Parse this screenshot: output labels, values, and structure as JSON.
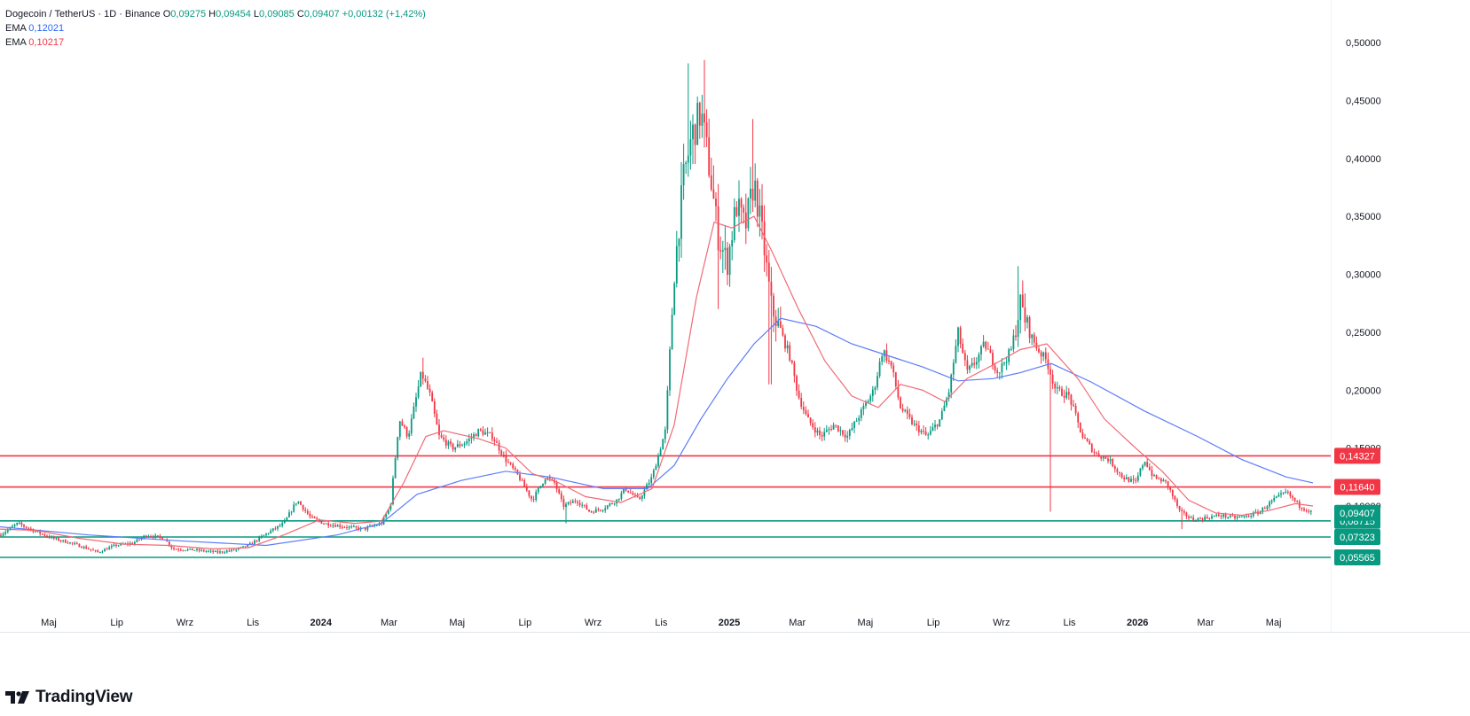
{
  "legend": {
    "symbol": "Dogecoin / TetherUS · 1D · Binance",
    "open_label": "O",
    "open": "0,09275",
    "high_label": "H",
    "high": "0,09454",
    "low_label": "L",
    "low": "0,09085",
    "close_label": "C",
    "close": "0,09407",
    "change": "+0,00132 (+1,42%)",
    "ema1_label": "EMA",
    "ema1_value": "0,12021",
    "ema2_label": "EMA",
    "ema2_value": "0,10217"
  },
  "brand": {
    "name": "TradingView"
  },
  "colors": {
    "up": "#089981",
    "down": "#f23645",
    "ema_slow": "#5b7cfa",
    "ema_fast": "#f06a75",
    "resistance": "#f23645",
    "support": "#089981"
  },
  "chart_data": {
    "type": "candlestick",
    "title": "Dogecoin / TetherUS · 1D · Binance",
    "ylim": [
      0.045,
      0.52
    ],
    "y_ticks": [
      0.1,
      0.15,
      0.2,
      0.25,
      0.3,
      0.35,
      0.4,
      0.45,
      0.5
    ],
    "y_tick_labels": [
      "0,10000",
      "0,15000",
      "0,20000",
      "0,25000",
      "0,30000",
      "0,35000",
      "0,40000",
      "0,45000",
      "0,50000"
    ],
    "x_tick_labels": [
      "Maj",
      "Lip",
      "Wrz",
      "Lis",
      "2024",
      "Mar",
      "Maj",
      "Lip",
      "Wrz",
      "Lis",
      "2025",
      "Mar",
      "Maj",
      "Lip",
      "Wrz",
      "Lis",
      "2026",
      "Mar",
      "Maj"
    ],
    "x_tick_bold": [
      false,
      false,
      false,
      false,
      true,
      false,
      false,
      false,
      false,
      false,
      true,
      false,
      false,
      false,
      false,
      false,
      true,
      false,
      false
    ],
    "horizontal_levels": [
      {
        "value": 0.14327,
        "label": "0,14327",
        "kind": "resistance"
      },
      {
        "value": 0.1164,
        "label": "0,11640",
        "kind": "resistance"
      },
      {
        "value": 0.08715,
        "label": "0,08715",
        "kind": "support"
      },
      {
        "value": 0.07323,
        "label": "0,07323",
        "kind": "support"
      },
      {
        "value": 0.05565,
        "label": "0,05565",
        "kind": "support"
      }
    ],
    "last_price": {
      "value": 0.09407,
      "label": "0,09407"
    },
    "price_path": [
      [
        0,
        0.075
      ],
      [
        20,
        0.085
      ],
      [
        40,
        0.078
      ],
      [
        60,
        0.072
      ],
      [
        80,
        0.068
      ],
      [
        100,
        0.063
      ],
      [
        110,
        0.06
      ],
      [
        130,
        0.066
      ],
      [
        150,
        0.068
      ],
      [
        165,
        0.075
      ],
      [
        185,
        0.072
      ],
      [
        195,
        0.063
      ],
      [
        220,
        0.062
      ],
      [
        245,
        0.06
      ],
      [
        265,
        0.062
      ],
      [
        280,
        0.066
      ],
      [
        300,
        0.076
      ],
      [
        320,
        0.085
      ],
      [
        335,
        0.105
      ],
      [
        350,
        0.09
      ],
      [
        365,
        0.085
      ],
      [
        390,
        0.082
      ],
      [
        410,
        0.08
      ],
      [
        430,
        0.085
      ],
      [
        440,
        0.1
      ],
      [
        450,
        0.175
      ],
      [
        460,
        0.16
      ],
      [
        475,
        0.215
      ],
      [
        485,
        0.195
      ],
      [
        495,
        0.16
      ],
      [
        510,
        0.15
      ],
      [
        525,
        0.155
      ],
      [
        540,
        0.165
      ],
      [
        555,
        0.16
      ],
      [
        570,
        0.14
      ],
      [
        585,
        0.125
      ],
      [
        600,
        0.105
      ],
      [
        615,
        0.125
      ],
      [
        625,
        0.12
      ],
      [
        635,
        0.1
      ],
      [
        650,
        0.105
      ],
      [
        665,
        0.095
      ],
      [
        680,
        0.098
      ],
      [
        695,
        0.105
      ],
      [
        705,
        0.115
      ],
      [
        720,
        0.105
      ],
      [
        735,
        0.125
      ],
      [
        750,
        0.165
      ],
      [
        760,
        0.3
      ],
      [
        770,
        0.38
      ],
      [
        780,
        0.42
      ],
      [
        790,
        0.44
      ],
      [
        800,
        0.39
      ],
      [
        810,
        0.33
      ],
      [
        820,
        0.31
      ],
      [
        830,
        0.36
      ],
      [
        840,
        0.34
      ],
      [
        850,
        0.38
      ],
      [
        860,
        0.33
      ],
      [
        870,
        0.27
      ],
      [
        880,
        0.25
      ],
      [
        890,
        0.23
      ],
      [
        900,
        0.195
      ],
      [
        910,
        0.175
      ],
      [
        925,
        0.16
      ],
      [
        940,
        0.17
      ],
      [
        955,
        0.16
      ],
      [
        970,
        0.18
      ],
      [
        985,
        0.2
      ],
      [
        995,
        0.235
      ],
      [
        1005,
        0.22
      ],
      [
        1015,
        0.185
      ],
      [
        1030,
        0.17
      ],
      [
        1045,
        0.16
      ],
      [
        1060,
        0.175
      ],
      [
        1070,
        0.2
      ],
      [
        1080,
        0.25
      ],
      [
        1090,
        0.215
      ],
      [
        1100,
        0.225
      ],
      [
        1110,
        0.24
      ],
      [
        1125,
        0.215
      ],
      [
        1140,
        0.235
      ],
      [
        1150,
        0.275
      ],
      [
        1160,
        0.25
      ],
      [
        1170,
        0.235
      ],
      [
        1180,
        0.225
      ],
      [
        1190,
        0.2
      ],
      [
        1205,
        0.195
      ],
      [
        1220,
        0.16
      ],
      [
        1235,
        0.145
      ],
      [
        1250,
        0.14
      ],
      [
        1265,
        0.125
      ],
      [
        1280,
        0.12
      ],
      [
        1290,
        0.14
      ],
      [
        1300,
        0.125
      ],
      [
        1315,
        0.12
      ],
      [
        1330,
        0.095
      ],
      [
        1345,
        0.088
      ],
      [
        1360,
        0.09
      ],
      [
        1375,
        0.092
      ],
      [
        1390,
        0.09
      ],
      [
        1405,
        0.091
      ],
      [
        1420,
        0.095
      ],
      [
        1435,
        0.105
      ],
      [
        1450,
        0.112
      ],
      [
        1465,
        0.1
      ],
      [
        1480,
        0.094
      ]
    ],
    "spikes": [
      {
        "x": 775,
        "high": 0.482
      },
      {
        "x": 795,
        "high": 0.485
      },
      {
        "x": 848,
        "high": 0.434
      },
      {
        "x": 1148,
        "high": 0.307
      },
      {
        "x": 476,
        "high": 0.228
      }
    ],
    "dips": [
      {
        "x": 1183,
        "low": 0.095
      },
      {
        "x": 810,
        "low": 0.27
      },
      {
        "x": 868,
        "low": 0.205
      },
      {
        "x": 638,
        "low": 0.085
      },
      {
        "x": 1333,
        "low": 0.08
      }
    ],
    "ema_slow_path": [
      [
        0,
        0.082
      ],
      [
        100,
        0.075
      ],
      [
        200,
        0.07
      ],
      [
        300,
        0.066
      ],
      [
        380,
        0.075
      ],
      [
        430,
        0.085
      ],
      [
        470,
        0.11
      ],
      [
        520,
        0.122
      ],
      [
        570,
        0.13
      ],
      [
        620,
        0.125
      ],
      [
        680,
        0.115
      ],
      [
        730,
        0.115
      ],
      [
        760,
        0.135
      ],
      [
        790,
        0.175
      ],
      [
        820,
        0.21
      ],
      [
        850,
        0.24
      ],
      [
        880,
        0.262
      ],
      [
        920,
        0.255
      ],
      [
        960,
        0.24
      ],
      [
        1000,
        0.23
      ],
      [
        1040,
        0.22
      ],
      [
        1080,
        0.208
      ],
      [
        1120,
        0.21
      ],
      [
        1150,
        0.215
      ],
      [
        1185,
        0.223
      ],
      [
        1230,
        0.207
      ],
      [
        1290,
        0.182
      ],
      [
        1350,
        0.16
      ],
      [
        1400,
        0.14
      ],
      [
        1450,
        0.125
      ],
      [
        1480,
        0.12
      ]
    ],
    "ema_fast_path": [
      [
        0,
        0.08
      ],
      [
        40,
        0.079
      ],
      [
        90,
        0.072
      ],
      [
        140,
        0.067
      ],
      [
        190,
        0.066
      ],
      [
        240,
        0.063
      ],
      [
        280,
        0.064
      ],
      [
        320,
        0.075
      ],
      [
        360,
        0.088
      ],
      [
        400,
        0.085
      ],
      [
        430,
        0.087
      ],
      [
        455,
        0.12
      ],
      [
        480,
        0.16
      ],
      [
        500,
        0.165
      ],
      [
        540,
        0.158
      ],
      [
        570,
        0.15
      ],
      [
        600,
        0.128
      ],
      [
        630,
        0.12
      ],
      [
        660,
        0.108
      ],
      [
        700,
        0.103
      ],
      [
        735,
        0.115
      ],
      [
        760,
        0.17
      ],
      [
        785,
        0.28
      ],
      [
        805,
        0.345
      ],
      [
        825,
        0.34
      ],
      [
        850,
        0.35
      ],
      [
        870,
        0.32
      ],
      [
        900,
        0.27
      ],
      [
        930,
        0.225
      ],
      [
        960,
        0.195
      ],
      [
        990,
        0.185
      ],
      [
        1015,
        0.205
      ],
      [
        1040,
        0.2
      ],
      [
        1065,
        0.19
      ],
      [
        1090,
        0.21
      ],
      [
        1120,
        0.222
      ],
      [
        1150,
        0.235
      ],
      [
        1180,
        0.24
      ],
      [
        1215,
        0.21
      ],
      [
        1245,
        0.175
      ],
      [
        1280,
        0.15
      ],
      [
        1310,
        0.13
      ],
      [
        1340,
        0.105
      ],
      [
        1370,
        0.094
      ],
      [
        1400,
        0.092
      ],
      [
        1430,
        0.096
      ],
      [
        1460,
        0.102
      ],
      [
        1480,
        0.1
      ]
    ]
  }
}
